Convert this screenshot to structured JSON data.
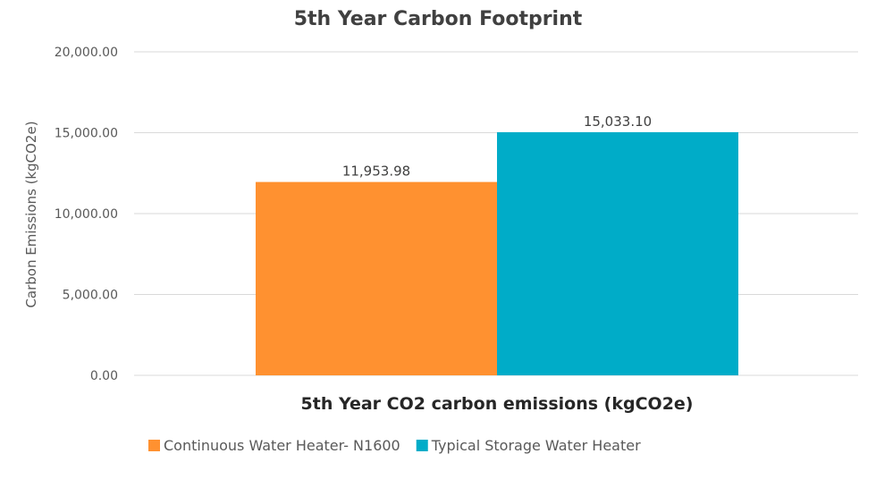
{
  "chart_data": {
    "type": "bar",
    "title": "5th Year Carbon Footprint",
    "xlabel": "5th Year CO2 carbon emissions (kgCO2e)",
    "ylabel": "Carbon Emissions (kgCO2e)",
    "ylim": [
      0,
      20000
    ],
    "yticks": [
      "0.00",
      "5,000.00",
      "10,000.00",
      "15,000.00",
      "20,000.00"
    ],
    "grid": true,
    "legend_position": "bottom",
    "series": [
      {
        "name": "Continuous Water Heater- N1600",
        "value": 11953.98,
        "label": "11,953.98",
        "color": "#ff9130"
      },
      {
        "name": "Typical Storage Water Heater",
        "value": 15033.1,
        "label": "15,033.10",
        "color": "#00acc8"
      }
    ]
  }
}
